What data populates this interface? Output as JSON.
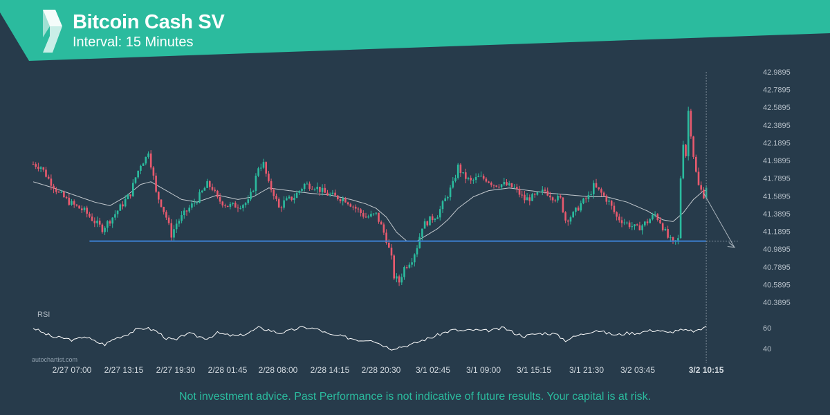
{
  "header": {
    "title": "Bitcoin Cash SV",
    "subtitle": "Interval: 15 Minutes"
  },
  "colors": {
    "background": "#273b4b",
    "header_band": "#2bbb9e",
    "candle_up": "#2bbb9e",
    "candle_down": "#e85a6e",
    "support_line": "#3d7fd1",
    "moving_average": "#c3c9ce",
    "rsi_line": "#ffffff"
  },
  "chart_data": {
    "type": "candlestick",
    "instrument": "Bitcoin Cash SV",
    "interval": "15 Minutes",
    "y_ticks": [
      "42.9895",
      "42.7895",
      "42.5895",
      "42.3895",
      "42.1895",
      "41.9895",
      "41.7895",
      "41.5895",
      "41.3895",
      "41.1895",
      "40.9895",
      "40.7895",
      "40.5895",
      "40.3895"
    ],
    "ylim": [
      40.3895,
      42.9895
    ],
    "x_ticks": [
      "2/27 07:00",
      "2/27 13:15",
      "2/27 19:30",
      "2/28 01:45",
      "2/28 08:00",
      "2/28 14:15",
      "2/28 20:30",
      "3/1 02:45",
      "3/1 09:00",
      "3/1 15:15",
      "3/1 21:30",
      "3/2 03:45",
      "3/2 10:15"
    ],
    "current_time_label": "3/2 10:15",
    "price_path": [
      [
        0,
        41.95
      ],
      [
        3,
        41.92
      ],
      [
        6,
        41.78
      ],
      [
        10,
        41.62
      ],
      [
        15,
        41.5
      ],
      [
        20,
        41.42
      ],
      [
        24,
        41.3
      ],
      [
        27,
        41.22
      ],
      [
        31,
        41.35
      ],
      [
        35,
        41.5
      ],
      [
        38,
        41.62
      ],
      [
        40,
        41.8
      ],
      [
        42,
        41.95
      ],
      [
        44,
        42.02
      ],
      [
        45,
        42.1
      ],
      [
        47,
        41.8
      ],
      [
        48,
        41.62
      ],
      [
        50,
        41.5
      ],
      [
        52,
        41.35
      ],
      [
        54,
        41.15
      ],
      [
        56,
        41.28
      ],
      [
        60,
        41.42
      ],
      [
        64,
        41.55
      ],
      [
        68,
        41.72
      ],
      [
        70,
        41.68
      ],
      [
        72,
        41.55
      ],
      [
        76,
        41.48
      ],
      [
        80,
        41.48
      ],
      [
        84,
        41.52
      ],
      [
        86,
        41.68
      ],
      [
        88,
        41.92
      ],
      [
        90,
        41.95
      ],
      [
        92,
        41.72
      ],
      [
        94,
        41.62
      ],
      [
        96,
        41.45
      ],
      [
        98,
        41.52
      ],
      [
        102,
        41.58
      ],
      [
        106,
        41.72
      ],
      [
        110,
        41.7
      ],
      [
        114,
        41.62
      ],
      [
        118,
        41.58
      ],
      [
        122,
        41.55
      ],
      [
        126,
        41.45
      ],
      [
        130,
        41.35
      ],
      [
        134,
        41.38
      ],
      [
        136,
        41.25
      ],
      [
        138,
        41.1
      ],
      [
        140,
        40.88
      ],
      [
        141,
        40.68
      ],
      [
        143,
        40.62
      ],
      [
        145,
        40.78
      ],
      [
        148,
        40.88
      ],
      [
        150,
        41.02
      ],
      [
        152,
        41.25
      ],
      [
        155,
        41.32
      ],
      [
        158,
        41.38
      ],
      [
        161,
        41.55
      ],
      [
        164,
        41.72
      ],
      [
        166,
        41.92
      ],
      [
        168,
        41.82
      ],
      [
        171,
        41.75
      ],
      [
        174,
        41.8
      ],
      [
        177,
        41.78
      ],
      [
        180,
        41.72
      ],
      [
        184,
        41.72
      ],
      [
        188,
        41.68
      ],
      [
        192,
        41.55
      ],
      [
        196,
        41.58
      ],
      [
        200,
        41.65
      ],
      [
        203,
        41.58
      ],
      [
        206,
        41.55
      ],
      [
        208,
        41.32
      ],
      [
        211,
        41.38
      ],
      [
        214,
        41.5
      ],
      [
        217,
        41.58
      ],
      [
        219,
        41.7
      ],
      [
        222,
        41.62
      ],
      [
        225,
        41.52
      ],
      [
        228,
        41.35
      ],
      [
        232,
        41.28
      ],
      [
        236,
        41.22
      ],
      [
        240,
        41.3
      ],
      [
        243,
        41.38
      ],
      [
        245,
        41.3
      ],
      [
        248,
        41.12
      ],
      [
        250,
        41.05
      ],
      [
        252,
        41.1
      ],
      [
        253,
        41.8
      ],
      [
        254,
        42.2
      ],
      [
        255,
        42.05
      ],
      [
        256,
        42.55
      ],
      [
        257,
        42.3
      ],
      [
        258,
        42.05
      ],
      [
        259,
        41.85
      ],
      [
        260,
        41.7
      ],
      [
        262,
        41.6
      ],
      [
        263,
        41.7
      ]
    ],
    "moving_average_path": [
      [
        0,
        41.75
      ],
      [
        8,
        41.68
      ],
      [
        16,
        41.6
      ],
      [
        24,
        41.52
      ],
      [
        30,
        41.48
      ],
      [
        36,
        41.58
      ],
      [
        42,
        41.72
      ],
      [
        46,
        41.75
      ],
      [
        52,
        41.65
      ],
      [
        58,
        41.55
      ],
      [
        64,
        41.52
      ],
      [
        72,
        41.6
      ],
      [
        80,
        41.55
      ],
      [
        86,
        41.58
      ],
      [
        92,
        41.68
      ],
      [
        100,
        41.65
      ],
      [
        108,
        41.62
      ],
      [
        116,
        41.6
      ],
      [
        124,
        41.55
      ],
      [
        130,
        41.5
      ],
      [
        134,
        41.45
      ],
      [
        138,
        41.35
      ],
      [
        142,
        41.18
      ],
      [
        146,
        41.08
      ],
      [
        150,
        41.08
      ],
      [
        154,
        41.15
      ],
      [
        158,
        41.22
      ],
      [
        162,
        41.32
      ],
      [
        166,
        41.45
      ],
      [
        172,
        41.58
      ],
      [
        178,
        41.65
      ],
      [
        186,
        41.68
      ],
      [
        194,
        41.65
      ],
      [
        202,
        41.62
      ],
      [
        210,
        41.6
      ],
      [
        218,
        41.58
      ],
      [
        224,
        41.58
      ],
      [
        232,
        41.52
      ],
      [
        240,
        41.42
      ],
      [
        246,
        41.32
      ],
      [
        250,
        41.3
      ],
      [
        254,
        41.4
      ],
      [
        258,
        41.55
      ],
      [
        262,
        41.65
      ]
    ],
    "support_level": 41.08,
    "projection": {
      "from_index": 262,
      "from_value": 41.62,
      "to_index": 274,
      "to_value": 41.01
    },
    "rsi": {
      "label": "RSI",
      "ticks": [
        "60",
        "40"
      ],
      "path": [
        [
          0,
          60
        ],
        [
          4,
          55
        ],
        [
          8,
          51
        ],
        [
          12,
          50
        ],
        [
          16,
          48
        ],
        [
          20,
          52
        ],
        [
          24,
          47
        ],
        [
          28,
          44
        ],
        [
          32,
          50
        ],
        [
          36,
          53
        ],
        [
          40,
          58
        ],
        [
          44,
          60
        ],
        [
          48,
          57
        ],
        [
          52,
          50
        ],
        [
          56,
          48
        ],
        [
          60,
          55
        ],
        [
          64,
          52
        ],
        [
          68,
          50
        ],
        [
          72,
          55
        ],
        [
          76,
          53
        ],
        [
          80,
          52
        ],
        [
          84,
          55
        ],
        [
          88,
          60
        ],
        [
          92,
          58
        ],
        [
          96,
          55
        ],
        [
          100,
          57
        ],
        [
          104,
          60
        ],
        [
          108,
          60
        ],
        [
          112,
          58
        ],
        [
          116,
          53
        ],
        [
          120,
          52
        ],
        [
          124,
          50
        ],
        [
          128,
          48
        ],
        [
          132,
          49
        ],
        [
          136,
          44
        ],
        [
          140,
          40
        ],
        [
          144,
          42
        ],
        [
          148,
          44
        ],
        [
          152,
          48
        ],
        [
          156,
          51
        ],
        [
          160,
          55
        ],
        [
          164,
          58
        ],
        [
          168,
          57
        ],
        [
          172,
          58
        ],
        [
          176,
          57
        ],
        [
          180,
          58
        ],
        [
          184,
          60
        ],
        [
          188,
          55
        ],
        [
          192,
          52
        ],
        [
          196,
          54
        ],
        [
          200,
          55
        ],
        [
          204,
          54
        ],
        [
          208,
          48
        ],
        [
          212,
          52
        ],
        [
          216,
          55
        ],
        [
          220,
          58
        ],
        [
          224,
          55
        ],
        [
          228,
          53
        ],
        [
          232,
          55
        ],
        [
          236,
          55
        ],
        [
          240,
          57
        ],
        [
          244,
          58
        ],
        [
          248,
          55
        ],
        [
          252,
          58
        ],
        [
          256,
          57
        ],
        [
          260,
          57
        ],
        [
          263,
          62
        ]
      ]
    }
  },
  "watermark": "autochartist.com",
  "disclaimer": "Not investment advice. Past Performance is not indicative of future results. Your capital is at risk."
}
